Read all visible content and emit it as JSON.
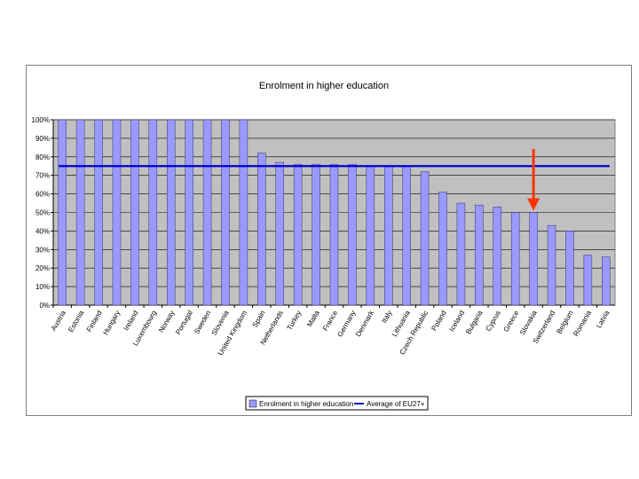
{
  "chart_data": {
    "type": "bar",
    "title": "Enrolment in higher education",
    "xlabel": "",
    "ylabel": "",
    "ylim": [
      0,
      100
    ],
    "y_unit": "%",
    "y_ticks": [
      "0%",
      "10%",
      "20%",
      "30%",
      "40%",
      "50%",
      "60%",
      "70%",
      "80%",
      "90%",
      "100%"
    ],
    "categories": [
      "Austria",
      "Estonia",
      "Finland",
      "Hungary",
      "Ireland",
      "Luxembourg",
      "Norway",
      "Portugal",
      "Sweden",
      "Slovenia",
      "United Kingdom",
      "Spain",
      "Netherlands",
      "Turkey",
      "Malta",
      "France",
      "Germany",
      "Denmark",
      "Italy",
      "Lithuania",
      "Czech Republic",
      "Poland",
      "Iceland",
      "Bulgaria",
      "Cyprus",
      "Greece",
      "Slovakia",
      "Switzerland",
      "Belgium",
      "Romania",
      "Latvia"
    ],
    "series": [
      {
        "name": "Enrolment in higher education",
        "type": "bar",
        "color": "#9999ff",
        "values": [
          100,
          100,
          100,
          100,
          100,
          100,
          100,
          100,
          100,
          100,
          100,
          82,
          77,
          76,
          76,
          76,
          76,
          75,
          75,
          75,
          72,
          61,
          55,
          54,
          53,
          50,
          50,
          43,
          40,
          27,
          26
        ]
      },
      {
        "name": "Average of EU27+",
        "type": "line",
        "color": "#0000cc",
        "value": 75
      }
    ],
    "highlight": {
      "category": "Slovakia",
      "marker": "arrow",
      "color": "#ff3300"
    },
    "grid": true,
    "plot_background": "#c0c0c0",
    "legend_position": "bottom"
  }
}
